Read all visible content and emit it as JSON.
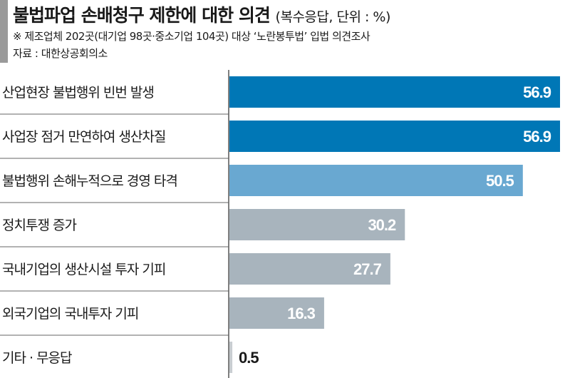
{
  "chart_data": {
    "type": "bar",
    "orientation": "horizontal",
    "title": "불법파업 손배청구 제한에 대한 의견",
    "title_unit": "(복수응답, 단위 : %)",
    "subtitle": "※ 제조업체 202곳(대기업 98곳·중소기업 104곳) 대상 ‘노란봉투법’ 입법 의견조사",
    "source": "자료 : 대한상공회의소",
    "categories": [
      "산업현장 불법행위 빈번 발생",
      "사업장 점거 만연하여 생산차질",
      "불법행위 손해누적으로 경영 타격",
      "정치투쟁 증가",
      "국내기업의 생산시설 투자 기피",
      "외국기업의 국내투자 기피",
      "기타 · 무응답"
    ],
    "values": [
      56.9,
      56.9,
      50.5,
      30.2,
      27.7,
      16.3,
      0.5
    ],
    "value_labels": [
      "56.9",
      "56.9",
      "50.5",
      "30.2",
      "27.7",
      "16.3",
      "0.5"
    ],
    "colors": [
      "#0077b6",
      "#0077b6",
      "#69a8d1",
      "#a8b4bd",
      "#a8b4bd",
      "#a8b4bd",
      "#c8cdd1"
    ],
    "xlim": [
      0,
      56.9
    ],
    "grid": false,
    "legend": "none"
  }
}
